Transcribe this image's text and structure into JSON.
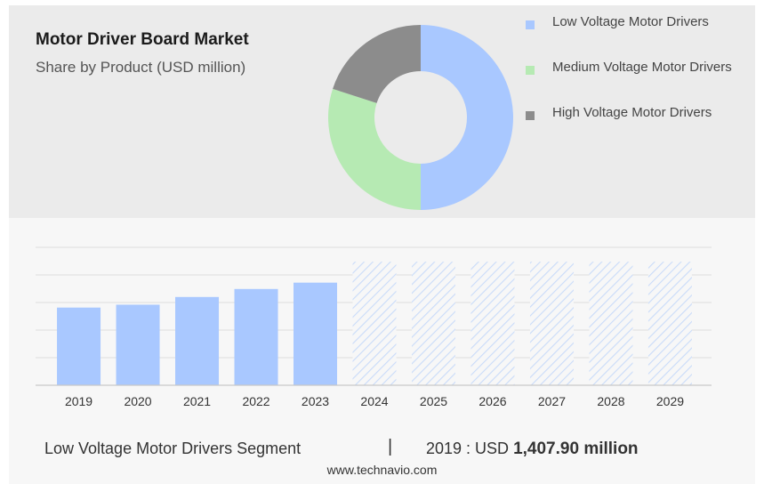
{
  "header": {
    "title": "Motor Driver Board Market",
    "subtitle": "Share by Product (USD million)"
  },
  "colors": {
    "low_voltage": "#a9c8ff",
    "medium_voltage": "#b6eab3",
    "high_voltage": "#8c8c8c",
    "forecast_hatch": "#c9dbf9",
    "grid": "#dedede"
  },
  "chart_data": [
    {
      "type": "pie",
      "variant": "donut",
      "title": "Share by Product (USD million)",
      "legend_position": "right",
      "slices": [
        {
          "name": "Low Voltage Motor Drivers",
          "value": 50,
          "color": "#a9c8ff"
        },
        {
          "name": "Medium Voltage Motor Drivers",
          "value": 30,
          "color": "#b6eab3"
        },
        {
          "name": "High Voltage Motor Drivers",
          "value": 20,
          "color": "#8c8c8c"
        }
      ]
    },
    {
      "type": "bar",
      "categories": [
        "2019",
        "2020",
        "2021",
        "2022",
        "2023",
        "2024",
        "2025",
        "2026",
        "2027",
        "2028",
        "2029"
      ],
      "series": [
        {
          "values": [
            1407.9,
            1460,
            1600,
            1745,
            1860,
            2240,
            2240,
            2240,
            2240,
            2240,
            2240
          ],
          "forecast": [
            false,
            false,
            false,
            false,
            false,
            true,
            true,
            true,
            true,
            true,
            true
          ]
        }
      ],
      "ylim": [
        0,
        2500
      ],
      "grid": true,
      "xlabel": "",
      "ylabel": ""
    }
  ],
  "footer": {
    "segment": "Low Voltage Motor Drivers Segment",
    "separator": "|",
    "value_prefix": "2019 : USD",
    "value": "1,407.90 million",
    "source": "www.technavio.com"
  }
}
